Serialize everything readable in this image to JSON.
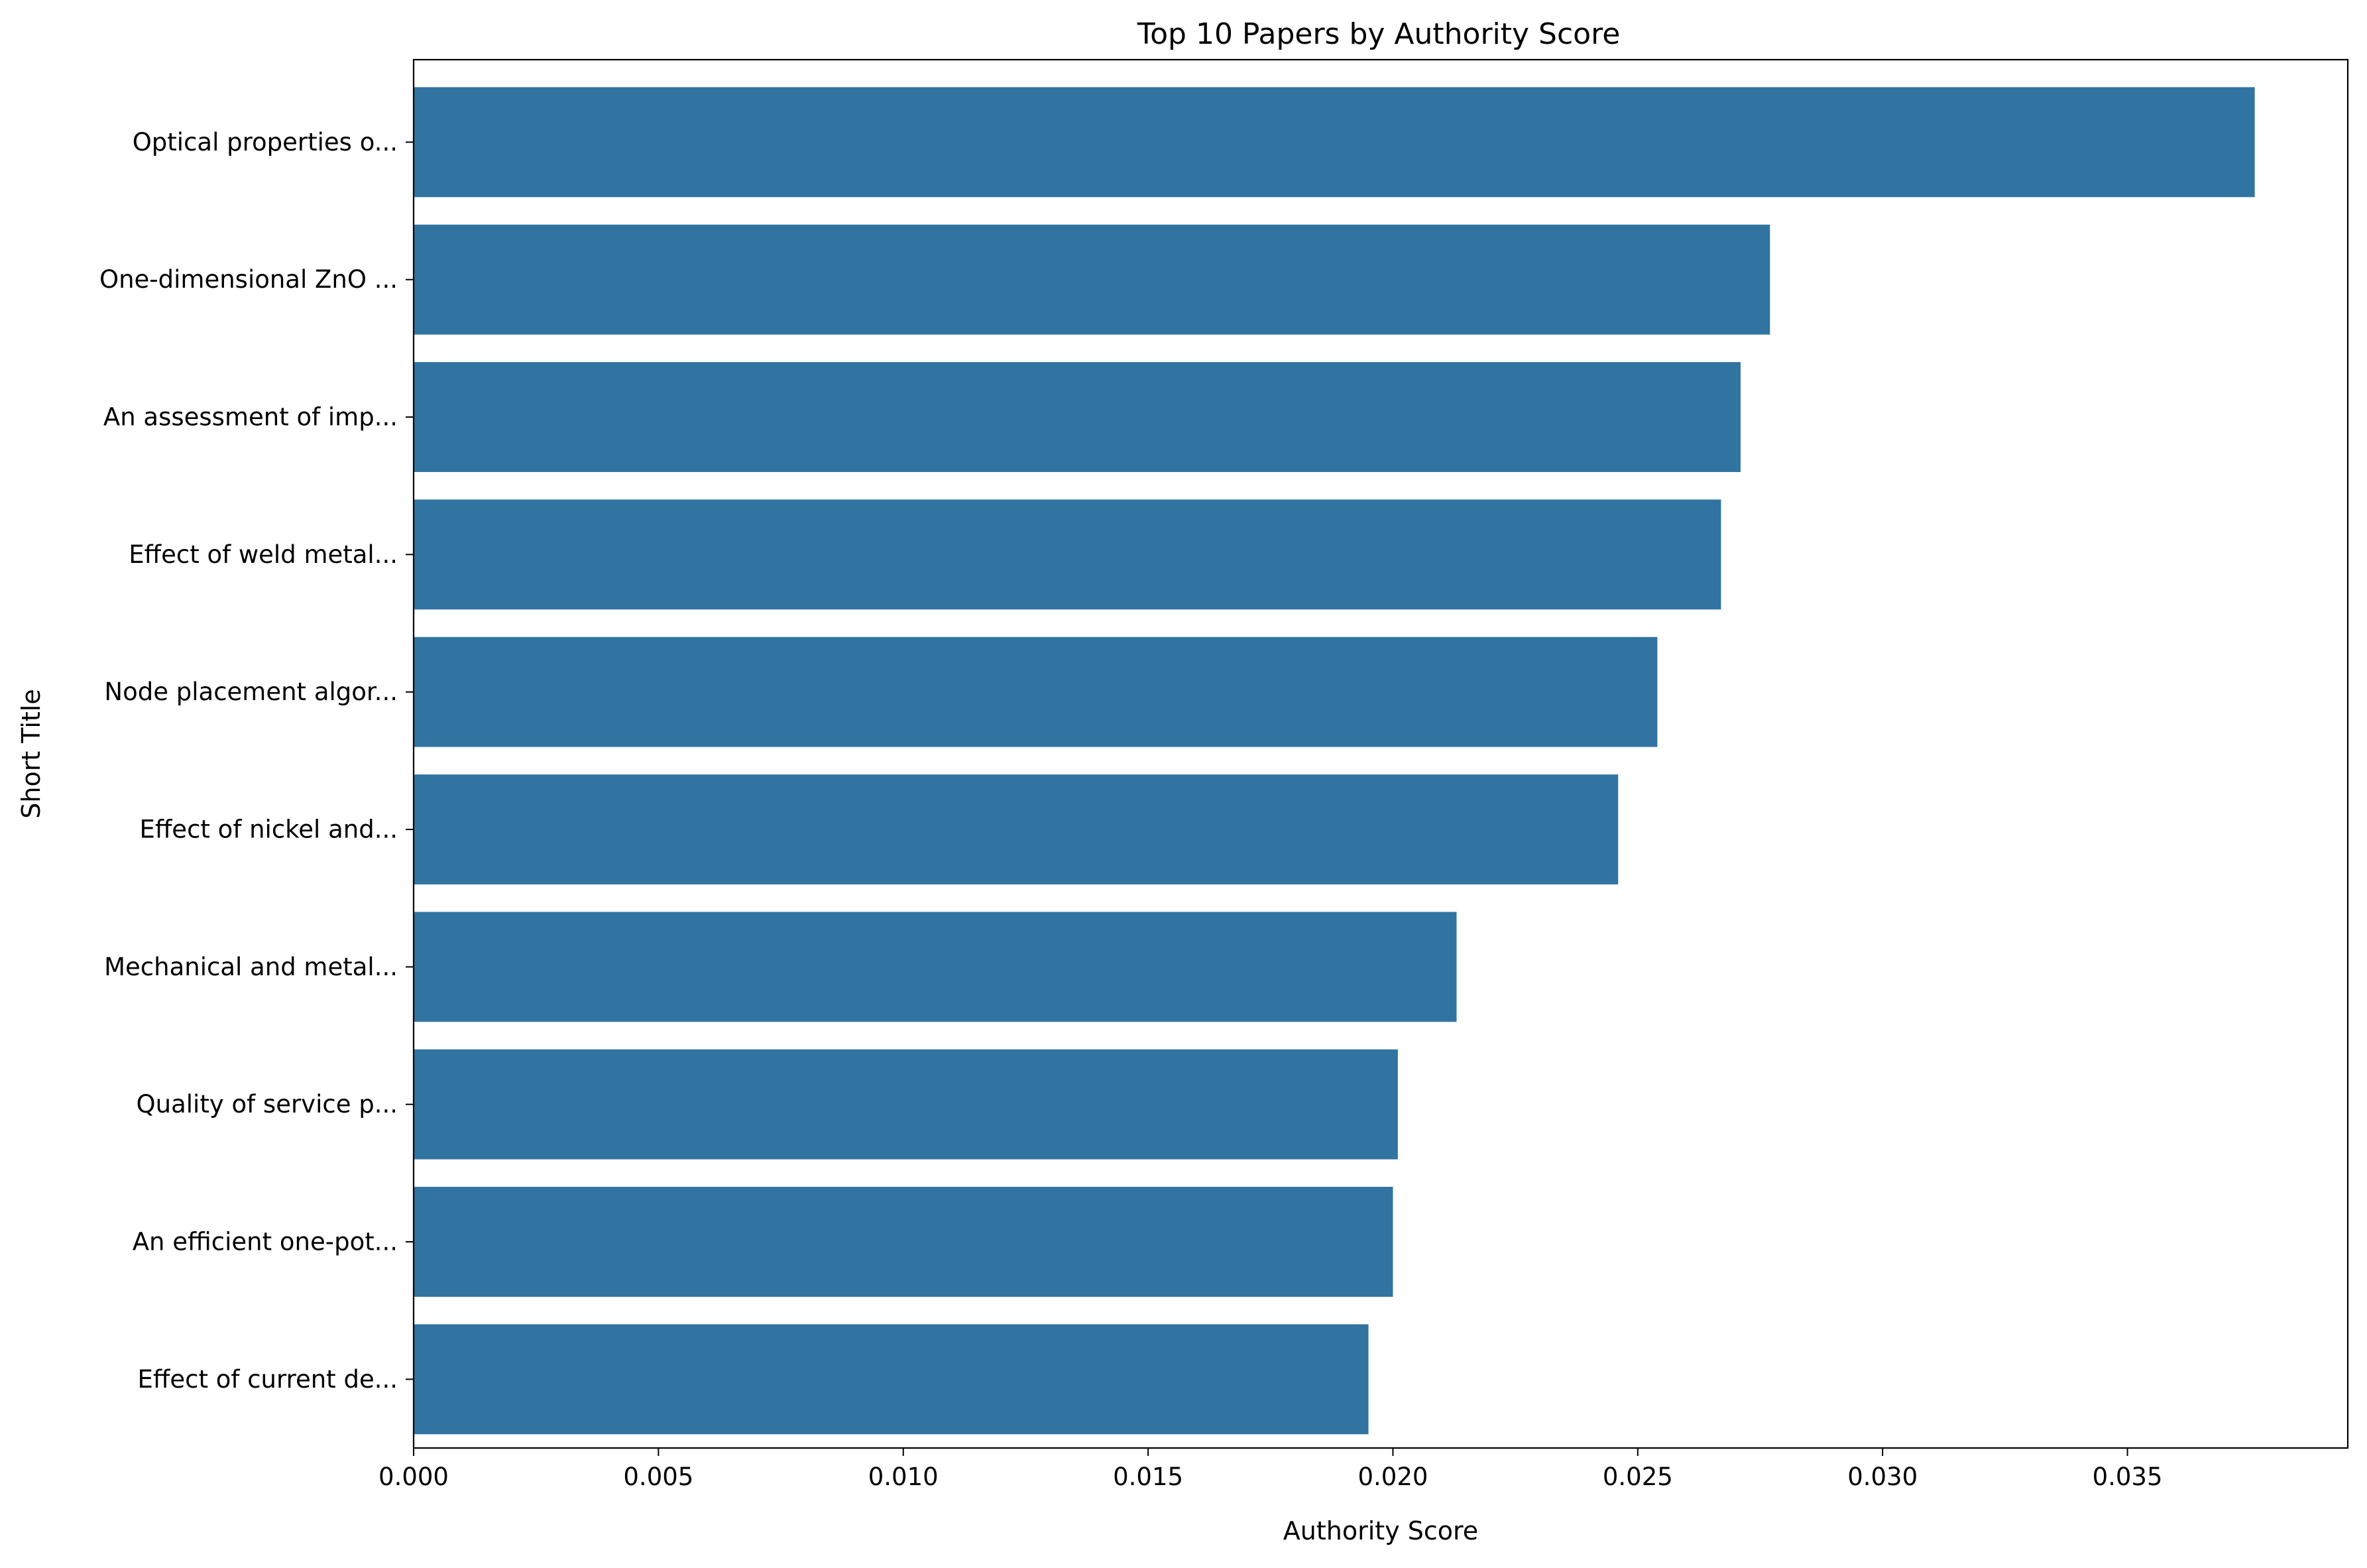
{
  "chart_data": {
    "type": "bar",
    "orientation": "horizontal",
    "title": "Top 10 Papers by Authority Score",
    "xlabel": "Authority Score",
    "ylabel": "Short Title",
    "xlim": [
      0,
      0.0395
    ],
    "x_ticks": [
      0.0,
      0.005,
      0.01,
      0.015,
      0.02,
      0.025,
      0.03,
      0.035
    ],
    "x_tick_labels": [
      "0.000",
      "0.005",
      "0.010",
      "0.015",
      "0.020",
      "0.025",
      "0.030",
      "0.035"
    ],
    "categories": [
      "Optical properties o...",
      "One-dimensional ZnO ...",
      "An assessment of imp...",
      "Effect of weld metal...",
      "Node placement algor...",
      "Effect of nickel and...",
      "Mechanical and metal...",
      "Quality of service p...",
      "An efficient one-pot...",
      "Effect of current de..."
    ],
    "values": [
      0.0376,
      0.0277,
      0.0271,
      0.0267,
      0.0254,
      0.0246,
      0.0213,
      0.0201,
      0.02,
      0.0195
    ],
    "grid": false,
    "legend": "none",
    "bar_color": "#3274a1"
  }
}
